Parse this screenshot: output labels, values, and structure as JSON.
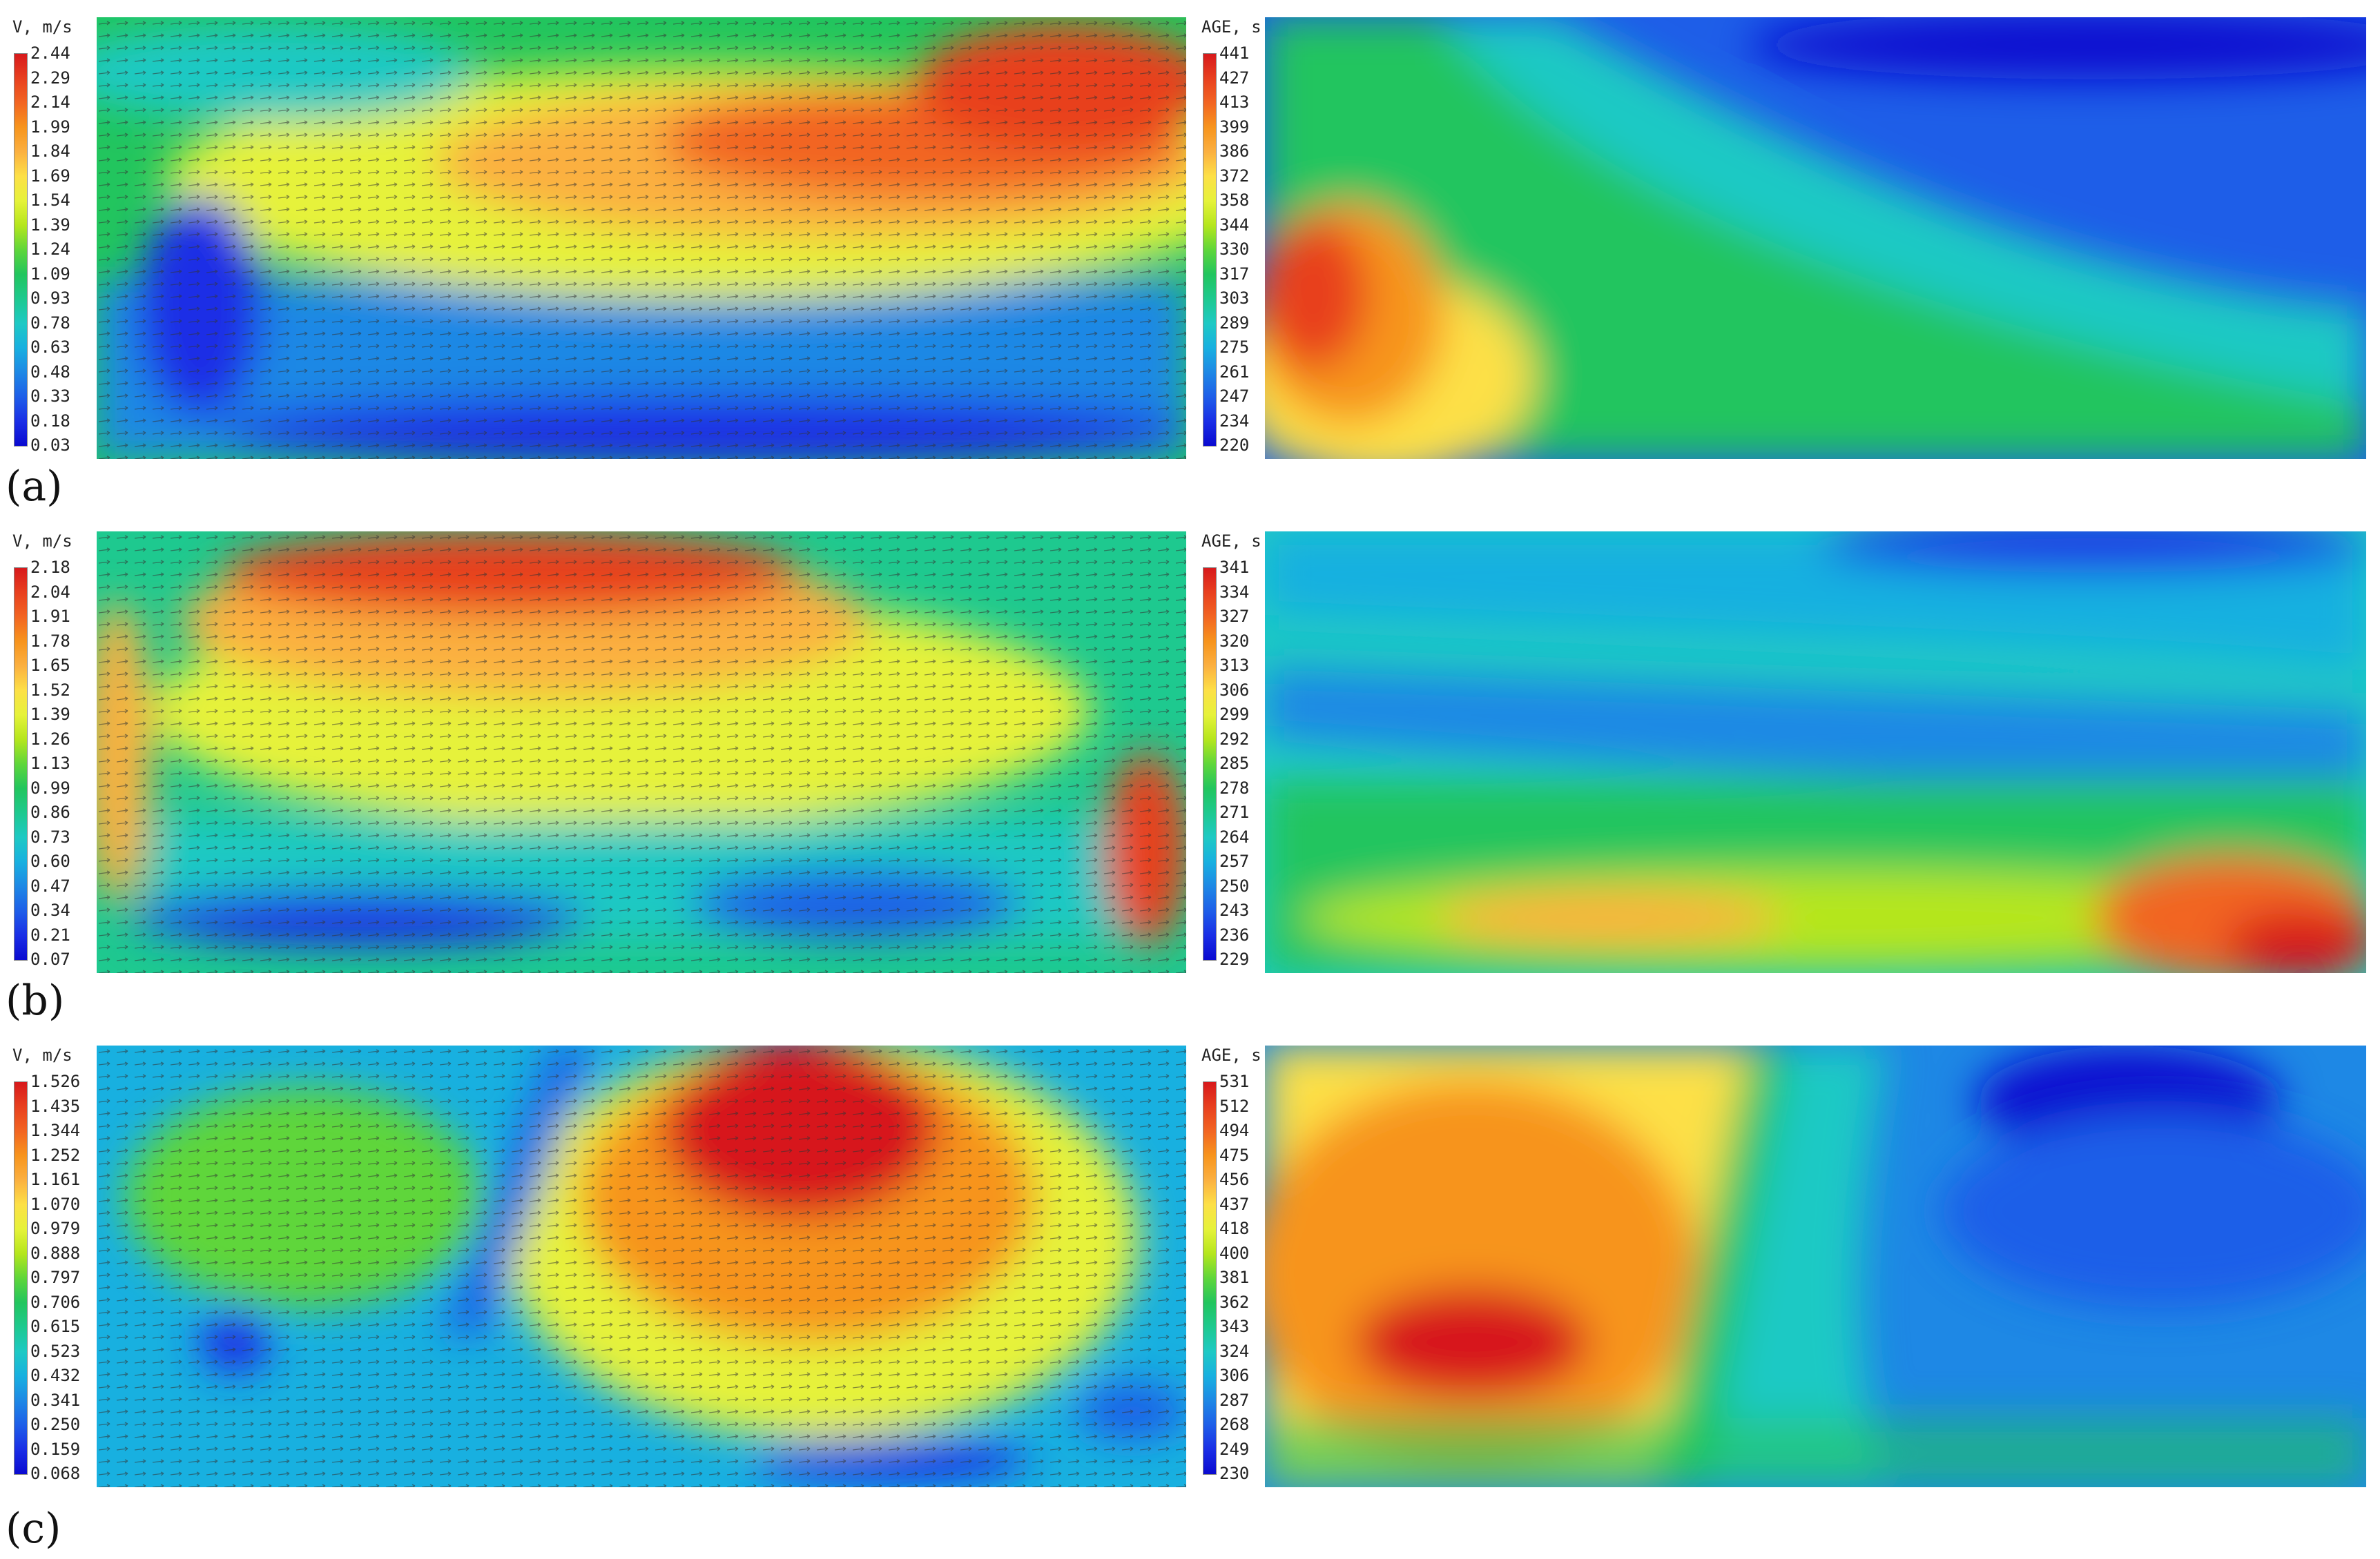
{
  "panels": [
    {
      "label": "(a)",
      "velocity": {
        "title": "V, m/s",
        "ticks": [
          "2.44",
          "2.29",
          "2.14",
          "1.99",
          "1.84",
          "1.69",
          "1.54",
          "1.39",
          "1.24",
          "1.09",
          "0.93",
          "0.78",
          "0.63",
          "0.48",
          "0.33",
          "0.18",
          "0.03"
        ]
      },
      "age": {
        "title": "AGE, s",
        "ticks": [
          "441",
          "427",
          "413",
          "399",
          "386",
          "372",
          "358",
          "344",
          "330",
          "317",
          "303",
          "289",
          "275",
          "261",
          "247",
          "234",
          "220"
        ]
      }
    },
    {
      "label": "(b)",
      "velocity": {
        "title": "V, m/s",
        "ticks": [
          "2.18",
          "2.04",
          "1.91",
          "1.78",
          "1.65",
          "1.52",
          "1.39",
          "1.26",
          "1.13",
          "0.99",
          "0.86",
          "0.73",
          "0.60",
          "0.47",
          "0.34",
          "0.21",
          "0.07"
        ]
      },
      "age": {
        "title": "AGE, s",
        "ticks": [
          "341",
          "334",
          "327",
          "320",
          "313",
          "306",
          "299",
          "292",
          "285",
          "278",
          "271",
          "264",
          "257",
          "250",
          "243",
          "236",
          "229"
        ]
      }
    },
    {
      "label": "(c)",
      "velocity": {
        "title": "V, m/s",
        "ticks": [
          "1.526",
          "1.435",
          "1.344",
          "1.252",
          "1.161",
          "1.070",
          "0.979",
          "0.888",
          "0.797",
          "0.706",
          "0.615",
          "0.523",
          "0.432",
          "0.341",
          "0.250",
          "0.159",
          "0.068"
        ]
      },
      "age": {
        "title": "AGE, s",
        "ticks": [
          "531",
          "512",
          "494",
          "475",
          "456",
          "437",
          "418",
          "400",
          "381",
          "362",
          "343",
          "324",
          "306",
          "287",
          "268",
          "249",
          "230"
        ]
      }
    }
  ],
  "colormap": [
    "#d7191c",
    "#e8401f",
    "#f26522",
    "#f7941d",
    "#fbb040",
    "#fde047",
    "#e6f23a",
    "#b5e61d",
    "#5fd63a",
    "#22c55e",
    "#1ec98f",
    "#1ec9c4",
    "#18b0e0",
    "#1e88e5",
    "#1e5ee8",
    "#1a2ee6",
    "#0a0ad0"
  ]
}
